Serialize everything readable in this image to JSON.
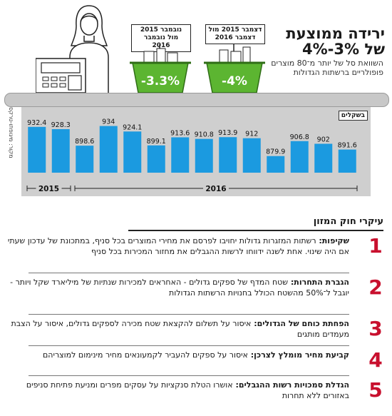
{
  "headline": "ירידה ממוצעת של 3%-4%",
  "subline": "השוואת סל של יותר מ־80 מוצרים פופולריים ברשתות הגדולות",
  "baskets": [
    {
      "tag": "נובמבר 2015 מול נובמבר 2016",
      "pct": "-3.3%"
    },
    {
      "tag": "דצמבר 2015 מול דצמבר 2016",
      "pct": "-4%"
    }
  ],
  "unit_label": "בשקלים",
  "credit": "מקור: מיגופתו-טרקס",
  "colors": {
    "bar": "#1b9ae0",
    "basket": "#5cb531",
    "number": "#c8102e"
  },
  "chart_data": {
    "type": "bar",
    "categories": [
      "",
      "",
      "",
      "",
      "",
      "",
      "",
      "",
      "",
      "",
      "",
      "",
      "",
      ""
    ],
    "values": [
      932.4,
      928.3,
      898.6,
      934,
      924.1,
      899.1,
      913.6,
      910.8,
      913.9,
      912,
      879.9,
      906.8,
      902,
      891.6
    ],
    "value_labels": [
      "932.4",
      "928.3",
      "898.6",
      "934",
      "924.1",
      "899.1",
      "913.6",
      "910.8",
      "913.9",
      "912",
      "879.9",
      "906.8",
      "902",
      "891.6"
    ],
    "year_groups": [
      {
        "label": "2015",
        "start": 0,
        "end": 1
      },
      {
        "label": "2016",
        "start": 2,
        "end": 13
      }
    ],
    "ylim": [
      850,
      945
    ],
    "grid": false,
    "title": "",
    "xlabel": "",
    "ylabel": ""
  },
  "law": {
    "title": "עיקרי חוק המזון",
    "items": [
      {
        "num": "1",
        "head": "שקיפות:",
        "text": "רשתות המזגרות גדולות יחויבו לפרסם את מחירי המוצרים בכל סניף, במתכונת של עדכון שעתי אם היה שינוי. אחת לשנה ידווחו לרשות ההגבלים את מחזור המכירות בכל סניף"
      },
      {
        "num": "2",
        "head": "הגברת התחרות:",
        "text": "שטח המדף של ספקים גדולים - האחראים למכירות שנתיות של מיליארד שקל ויותר - יוגבל ל־50% מהשטח הכולל בחנויות הרשתות הגדולות"
      },
      {
        "num": "3",
        "head": "הפחתת כוחם של הגדולים:",
        "text": "איסור על תשלום להקצאת שטח מכירה לספקים גדולים, איסור על הצבת מעמדים מותגים"
      },
      {
        "num": "4",
        "head": "קביעת מחיר מומלץ לצרכן:",
        "text": "איסור על ספקים להעביר לקמעונאים מחיר מינימום למוצריהם"
      },
      {
        "num": "5",
        "head": "הגדלת סמכויות רשות ההגבלים:",
        "text": "אושרו הטלת סנקציות על עסקים מפרים ומניעת פתיחת סניפים באזורים ללא תחרות"
      }
    ]
  }
}
